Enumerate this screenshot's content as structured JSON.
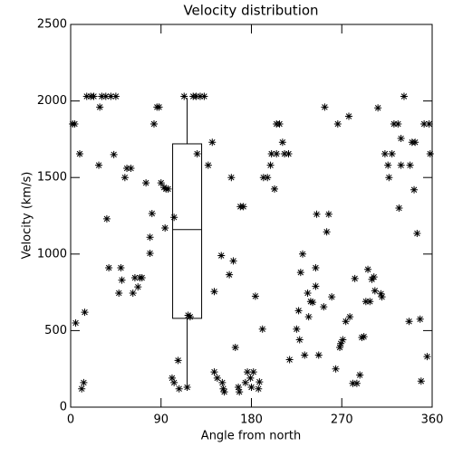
{
  "chart_data": {
    "type": "scatter",
    "title": "Velocity distribution",
    "xlabel": "Angle from north",
    "ylabel": "Velocity (km/s)",
    "color": "#000000",
    "xlim": [
      0,
      360
    ],
    "xticks": [
      0,
      90,
      180,
      270,
      360
    ],
    "ylim": [
      0,
      2500
    ],
    "yticks": [
      0,
      500,
      1000,
      1500,
      2000,
      2500
    ],
    "box": {
      "x": 116,
      "low": 110,
      "q1": 580,
      "median": 1160,
      "q3": 1720,
      "high": 2020
    },
    "x": [
      2,
      4,
      9,
      5,
      11,
      13,
      14,
      16,
      20,
      23,
      28,
      29,
      31,
      35,
      40,
      45,
      36,
      38,
      43,
      50,
      48,
      51,
      54,
      56,
      60,
      62,
      64,
      67,
      69,
      71,
      75,
      79,
      79,
      81,
      83,
      86,
      88,
      90,
      93,
      95,
      97,
      94,
      103,
      101,
      103,
      107,
      108,
      113,
      116,
      117,
      119,
      122,
      125,
      129,
      133,
      126,
      137,
      141,
      143,
      143,
      146,
      150,
      152,
      151,
      153,
      158,
      160,
      162,
      164,
      167,
      168,
      169,
      172,
      174,
      176,
      179,
      180,
      182,
      187,
      184,
      191,
      188,
      192,
      196,
      199,
      200,
      203,
      205,
      205,
      208,
      211,
      213,
      217,
      218,
      225,
      227,
      229,
      231,
      228,
      233,
      236,
      237,
      239,
      241,
      244,
      244,
      245,
      247,
      252,
      253,
      255,
      257,
      260,
      264,
      266,
      268,
      269,
      271,
      274,
      277,
      278,
      281,
      283,
      285,
      288,
      290,
      292,
      294,
      296,
      298,
      300,
      302,
      303,
      306,
      309,
      310,
      313,
      316,
      317,
      320,
      322,
      326,
      327,
      329,
      329,
      332,
      337,
      338,
      340,
      343,
      342,
      345,
      348,
      349,
      352,
      355,
      357,
      358
    ],
    "values": [
      1850,
      1850,
      1655,
      550,
      120,
      160,
      620,
      2030,
      2030,
      2030,
      1580,
      1960,
      2030,
      2030,
      2030,
      2030,
      1230,
      910,
      1650,
      910,
      745,
      830,
      1500,
      1560,
      1560,
      745,
      845,
      785,
      845,
      845,
      1465,
      1005,
      1110,
      1265,
      1850,
      1960,
      1960,
      1465,
      1435,
      1425,
      1425,
      1170,
      1240,
      190,
      160,
      305,
      120,
      2030,
      130,
      600,
      590,
      2030,
      2030,
      2030,
      2030,
      1655,
      1580,
      1730,
      755,
      230,
      190,
      990,
      120,
      160,
      100,
      865,
      1500,
      955,
      390,
      130,
      100,
      1310,
      1310,
      160,
      230,
      190,
      130,
      230,
      120,
      725,
      510,
      165,
      1500,
      1500,
      1580,
      1655,
      1425,
      1655,
      1850,
      1850,
      1730,
      1655,
      1655,
      310,
      510,
      630,
      880,
      1000,
      440,
      340,
      745,
      590,
      690,
      685,
      910,
      790,
      1260,
      340,
      655,
      1960,
      1145,
      1260,
      720,
      250,
      1850,
      390,
      415,
      440,
      560,
      1900,
      590,
      155,
      840,
      155,
      210,
      455,
      460,
      690,
      900,
      690,
      835,
      850,
      760,
      1955,
      740,
      720,
      1655,
      1580,
      1500,
      1655,
      1850,
      1850,
      1300,
      1755,
      1580,
      2030,
      560,
      1580,
      1730,
      1730,
      1420,
      1135,
      575,
      170,
      1850,
      330,
      1850,
      1655
    ]
  }
}
